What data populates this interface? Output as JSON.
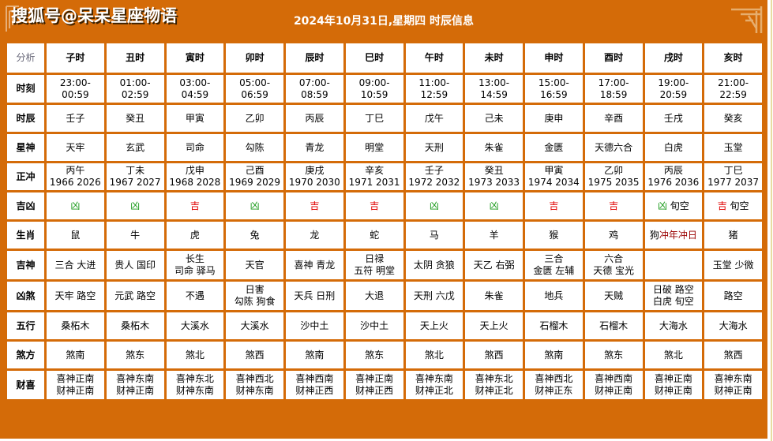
{
  "header": {
    "brand": "搜狐号@呆呆星座物语",
    "title": "2024年10月31日,星期四 时辰信息"
  },
  "colors": {
    "frame": "#d46b08",
    "good": "#e00000",
    "bad": "#1a9a1a",
    "clash": "#9a0000"
  },
  "table": {
    "corner_label": "分析",
    "columns": [
      "子时",
      "丑时",
      "寅时",
      "卯时",
      "辰时",
      "巳时",
      "午时",
      "未时",
      "申时",
      "酉时",
      "戌时",
      "亥时"
    ],
    "rows": {
      "time": {
        "label": "时刻",
        "values": [
          "23:00-00:59",
          "01:00-02:59",
          "03:00-04:59",
          "05:00-06:59",
          "07:00-08:59",
          "09:00-10:59",
          "11:00-12:59",
          "13:00-14:59",
          "15:00-16:59",
          "17:00-18:59",
          "19:00-20:59",
          "21:00-22:59"
        ]
      },
      "shichen": {
        "label": "时辰",
        "values": [
          "壬子",
          "癸丑",
          "甲寅",
          "乙卯",
          "丙辰",
          "丁巳",
          "戊午",
          "己未",
          "庚申",
          "辛酉",
          "壬戌",
          "癸亥"
        ]
      },
      "xingshen": {
        "label": "星神",
        "values": [
          "天牢",
          "玄武",
          "司命",
          "勾陈",
          "青龙",
          "明堂",
          "天刑",
          "朱雀",
          "金匮",
          "天德六合",
          "白虎",
          "玉堂"
        ]
      },
      "zhengchong": {
        "label": "正冲",
        "values": [
          {
            "gz": "丙午",
            "years": "1966 2026"
          },
          {
            "gz": "丁未",
            "years": "1967 2027"
          },
          {
            "gz": "戊申",
            "years": "1968 2028"
          },
          {
            "gz": "己酉",
            "years": "1969 2029"
          },
          {
            "gz": "庚戌",
            "years": "1970 2030"
          },
          {
            "gz": "辛亥",
            "years": "1971 2031"
          },
          {
            "gz": "壬子",
            "years": "1972 2032"
          },
          {
            "gz": "癸丑",
            "years": "1973 2033"
          },
          {
            "gz": "甲寅",
            "years": "1974 2034"
          },
          {
            "gz": "乙卯",
            "years": "1975 2035"
          },
          {
            "gz": "丙辰",
            "years": "1976 2036"
          },
          {
            "gz": "丁巳",
            "years": "1977 2037"
          }
        ]
      },
      "jixiong": {
        "label": "吉凶",
        "values": [
          {
            "luck": "凶",
            "extra": ""
          },
          {
            "luck": "凶",
            "extra": ""
          },
          {
            "luck": "吉",
            "extra": ""
          },
          {
            "luck": "凶",
            "extra": ""
          },
          {
            "luck": "吉",
            "extra": ""
          },
          {
            "luck": "吉",
            "extra": ""
          },
          {
            "luck": "凶",
            "extra": ""
          },
          {
            "luck": "凶",
            "extra": ""
          },
          {
            "luck": "吉",
            "extra": ""
          },
          {
            "luck": "吉",
            "extra": ""
          },
          {
            "luck": "凶",
            "extra": "旬空"
          },
          {
            "luck": "吉",
            "extra": "旬空"
          }
        ]
      },
      "shengxiao": {
        "label": "生肖",
        "values": [
          {
            "animal": "鼠",
            "clash": ""
          },
          {
            "animal": "牛",
            "clash": ""
          },
          {
            "animal": "虎",
            "clash": ""
          },
          {
            "animal": "兔",
            "clash": ""
          },
          {
            "animal": "龙",
            "clash": ""
          },
          {
            "animal": "蛇",
            "clash": ""
          },
          {
            "animal": "马",
            "clash": ""
          },
          {
            "animal": "羊",
            "clash": ""
          },
          {
            "animal": "猴",
            "clash": ""
          },
          {
            "animal": "鸡",
            "clash": ""
          },
          {
            "animal": "狗",
            "clash": "冲年冲日"
          },
          {
            "animal": "猪",
            "clash": ""
          }
        ]
      },
      "jishen": {
        "label": "吉神",
        "values": [
          {
            "l1": "三合 大进",
            "l2": ""
          },
          {
            "l1": "贵人 国印",
            "l2": ""
          },
          {
            "l1": "长生",
            "l2": "司命 驿马"
          },
          {
            "l1": "天官",
            "l2": ""
          },
          {
            "l1": "喜神 青龙",
            "l2": ""
          },
          {
            "l1": "日禄",
            "l2": "五符 明堂"
          },
          {
            "l1": "太阴 贪狼",
            "l2": ""
          },
          {
            "l1": "天乙 右弼",
            "l2": ""
          },
          {
            "l1": "三合",
            "l2": "金匮 左辅"
          },
          {
            "l1": "六合",
            "l2": "天德 宝光"
          },
          {
            "l1": "",
            "l2": ""
          },
          {
            "l1": "玉堂 少微",
            "l2": ""
          }
        ]
      },
      "xiongsha": {
        "label": "凶煞",
        "values": [
          {
            "l1": "天牢 路空",
            "l2": ""
          },
          {
            "l1": "元武 路空",
            "l2": ""
          },
          {
            "l1": "不遇",
            "l2": ""
          },
          {
            "l1": "日害",
            "l2": "勾陈 狗食"
          },
          {
            "l1": "天兵 日刑",
            "l2": ""
          },
          {
            "l1": "大退",
            "l2": ""
          },
          {
            "l1": "天刑 六戊",
            "l2": ""
          },
          {
            "l1": "朱雀",
            "l2": ""
          },
          {
            "l1": "地兵",
            "l2": ""
          },
          {
            "l1": "天贼",
            "l2": ""
          },
          {
            "l1": "日破 路空",
            "l2": "白虎 旬空"
          },
          {
            "l1": "路空",
            "l2": ""
          }
        ]
      },
      "wuxing": {
        "label": "五行",
        "values": [
          "桑柘木",
          "桑柘木",
          "大溪水",
          "大溪水",
          "沙中土",
          "沙中土",
          "天上火",
          "天上火",
          "石榴木",
          "石榴木",
          "大海水",
          "大海水"
        ]
      },
      "shafang": {
        "label": "煞方",
        "values": [
          "煞南",
          "煞东",
          "煞北",
          "煞西",
          "煞南",
          "煞东",
          "煞北",
          "煞西",
          "煞南",
          "煞东",
          "煞北",
          "煞西"
        ]
      },
      "caixi": {
        "label": "财喜",
        "values": [
          {
            "xi": "喜神正南",
            "cai": "财神正南"
          },
          {
            "xi": "喜神东南",
            "cai": "财神正南"
          },
          {
            "xi": "喜神东北",
            "cai": "财神东南"
          },
          {
            "xi": "喜神西北",
            "cai": "财神东南"
          },
          {
            "xi": "喜神西南",
            "cai": "财神正西"
          },
          {
            "xi": "喜神正南",
            "cai": "财神正西"
          },
          {
            "xi": "喜神东南",
            "cai": "财神正北"
          },
          {
            "xi": "喜神东北",
            "cai": "财神正北"
          },
          {
            "xi": "喜神西北",
            "cai": "财神正东"
          },
          {
            "xi": "喜神西南",
            "cai": "财神正南"
          },
          {
            "xi": "喜神正南",
            "cai": "财神正南"
          },
          {
            "xi": "喜神东南",
            "cai": "财神正南"
          }
        ]
      }
    }
  }
}
